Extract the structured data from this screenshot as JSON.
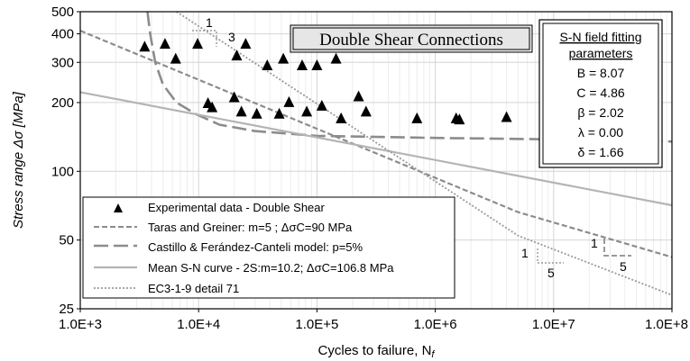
{
  "chart_data": {
    "type": "scatter",
    "title": "Double Shear Connections",
    "xlabel": "Cycles to failure, N",
    "xlabel_sub": "f",
    "ylabel": "Stress range  Δσ  [MPa]",
    "xscale": "log",
    "yscale": "log",
    "xlim": [
      1000,
      100000000
    ],
    "ylim": [
      25,
      500
    ],
    "x_tick_values": [
      1000,
      10000,
      100000,
      1000000,
      10000000,
      100000000
    ],
    "x_tick_labels": [
      "1.0E+3",
      "1.0E+4",
      "1.0E+5",
      "1.0E+6",
      "1.0E+7",
      "1.0E+8"
    ],
    "y_tick_values": [
      25,
      50,
      100,
      200,
      300,
      400,
      500
    ],
    "y_tick_labels": [
      "25",
      "50",
      "100",
      "200",
      "300",
      "400",
      "500"
    ],
    "grid": true,
    "legend_position": "bottom-left",
    "series": [
      {
        "name": "Experimental data - Double Shear",
        "kind": "scatter",
        "color": "#000000",
        "x": [
          3500,
          5200,
          6400,
          9800,
          21000,
          25000,
          38000,
          52000,
          75000,
          100000,
          145000,
          12000,
          13000,
          20000,
          23000,
          31000,
          48000,
          58000,
          82000,
          110000,
          160000,
          225000,
          260000,
          700000,
          1500000,
          1600000,
          4000000
        ],
        "y": [
          350,
          360,
          310,
          360,
          320,
          360,
          290,
          310,
          290,
          290,
          310,
          198,
          190,
          210,
          182,
          178,
          178,
          200,
          182,
          193,
          170,
          212,
          182,
          170,
          170,
          168,
          172
        ]
      },
      {
        "name": "Taras and Greiner: m=5 ; ΔσC=90 MPa",
        "kind": "line",
        "style": "short-dash",
        "color": "#8c8c8c",
        "x": [
          1000,
          5000000,
          100000000
        ],
        "y": [
          413,
          66.3,
          42.1
        ]
      },
      {
        "name": "Castillo & Ferández-Canteli model: p=5%",
        "kind": "line",
        "style": "long-dash",
        "color": "#8c8c8c",
        "x": [
          3700,
          3900,
          4300,
          5000,
          6500,
          9500,
          15000,
          30000,
          100000,
          1000000,
          10000000,
          100000000
        ],
        "y": [
          500,
          400,
          300,
          240,
          200,
          178,
          160,
          150,
          143,
          140,
          138,
          135
        ]
      },
      {
        "name": "Mean S-N curve - 2S:m=10.2; ΔσC=106.8 MPa",
        "kind": "line",
        "style": "solid",
        "color": "#b4b4b4",
        "x": [
          1000,
          100000000
        ],
        "y": [
          222,
          71
        ]
      },
      {
        "name": "EC3-1-9 detail 71",
        "kind": "line",
        "style": "dotted",
        "color": "#9a9a9a",
        "x": [
          6500,
          5000000,
          100000000
        ],
        "y": [
          500,
          52.3,
          28.7
        ]
      }
    ],
    "annotations": {
      "slope_triangles": [
        {
          "near": "EC3 top",
          "rise": "1",
          "run": "3"
        },
        {
          "near": "EC3 tail",
          "rise": "1",
          "run": "5"
        },
        {
          "near": "Taras tail",
          "rise": "1",
          "run": "5"
        }
      ]
    },
    "parameters": {
      "title_line1": "S-N field fitting",
      "title_line2": "parameters",
      "values": [
        "B = 8.07",
        "C = 4.86",
        "β = 2.02",
        "λ = 0.00",
        "δ = 1.66"
      ]
    }
  }
}
